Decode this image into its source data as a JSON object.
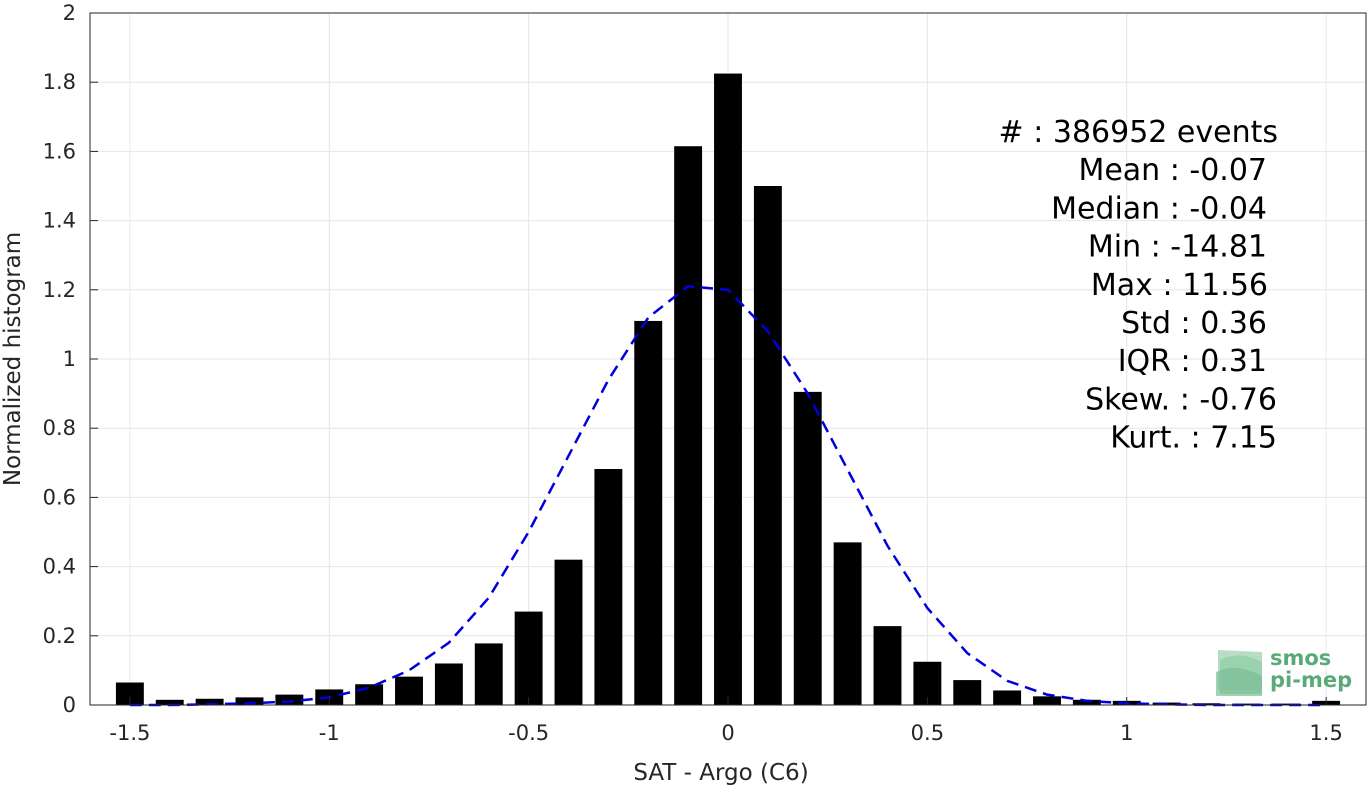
{
  "chart_data": {
    "type": "bar",
    "xlabel": "SAT - Argo (C6)",
    "ylabel": "Normalized histogram",
    "xlim": [
      -1.6,
      1.6
    ],
    "ylim": [
      0,
      2
    ],
    "xticks": [
      "-1.5",
      "-1",
      "-0.5",
      "0",
      "0.5",
      "1",
      "1.5"
    ],
    "yticks": [
      "0",
      "0.2",
      "0.4",
      "0.6",
      "0.8",
      "1",
      "1.2",
      "1.4",
      "1.6",
      "1.8",
      "2"
    ],
    "grid": true,
    "bar_width": 0.07,
    "bars": {
      "x": [
        -1.5,
        -1.4,
        -1.3,
        -1.2,
        -1.1,
        -1.0,
        -0.9,
        -0.8,
        -0.7,
        -0.6,
        -0.5,
        -0.4,
        -0.3,
        -0.2,
        -0.1,
        0.0,
        0.1,
        0.2,
        0.3,
        0.4,
        0.5,
        0.6,
        0.7,
        0.8,
        0.9,
        1.0,
        1.1,
        1.2,
        1.3,
        1.4,
        1.5
      ],
      "values": [
        0.065,
        0.015,
        0.018,
        0.022,
        0.03,
        0.045,
        0.06,
        0.082,
        0.12,
        0.178,
        0.27,
        0.42,
        0.682,
        1.11,
        1.615,
        1.825,
        1.5,
        0.905,
        0.47,
        0.228,
        0.125,
        0.072,
        0.042,
        0.025,
        0.015,
        0.012,
        0.007,
        0.005,
        0.004,
        0.004,
        0.012
      ],
      "color": "#000000"
    },
    "fit_curve": {
      "style": "dashed",
      "color": "#0000dd",
      "x": [
        -1.5,
        -1.4,
        -1.3,
        -1.2,
        -1.1,
        -1.0,
        -0.9,
        -0.8,
        -0.7,
        -0.6,
        -0.5,
        -0.4,
        -0.3,
        -0.2,
        -0.1,
        0.0,
        0.1,
        0.2,
        0.3,
        0.4,
        0.5,
        0.6,
        0.7,
        0.8,
        0.9,
        1.0,
        1.1,
        1.2,
        1.3,
        1.4,
        1.5
      ],
      "y": [
        0.0,
        0.0,
        0.002,
        0.005,
        0.01,
        0.022,
        0.05,
        0.1,
        0.18,
        0.31,
        0.5,
        0.72,
        0.94,
        1.12,
        1.21,
        1.2,
        1.08,
        0.9,
        0.68,
        0.46,
        0.28,
        0.15,
        0.07,
        0.03,
        0.012,
        0.005,
        0.002,
        0.0,
        0.0,
        0.0,
        0.0
      ]
    },
    "annotations": [
      "#   : 386952 events",
      "Mean : -0.07",
      "Median : -0.04",
      "Min : -14.81",
      "Max : 11.56",
      "Std : 0.36",
      "IQR : 0.31",
      "Skew. : -0.76",
      "Kurt. : 7.15"
    ]
  },
  "logo": {
    "line1": "smos",
    "line2": "pi-mep",
    "color": "#5aaa78"
  }
}
